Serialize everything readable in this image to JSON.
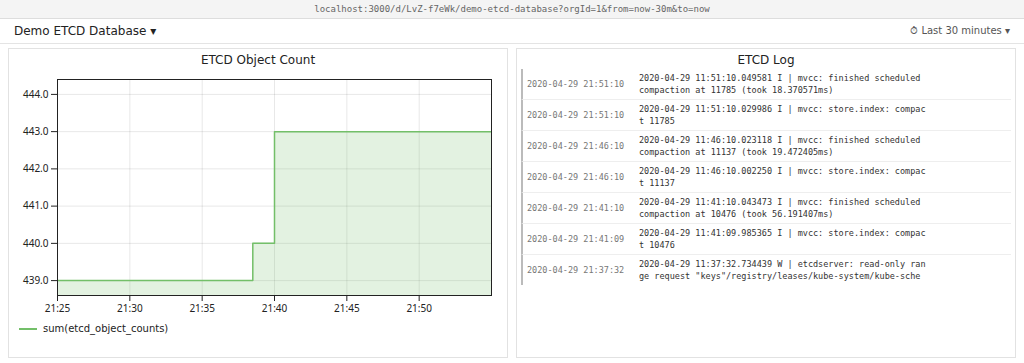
{
  "chart_data": [
    {
      "type": "area",
      "title": "ETCD Object Count",
      "x": [
        0,
        13.5,
        13.5,
        15.0,
        15.0,
        30
      ],
      "series": [
        {
          "name": "sum(etcd_object_counts)",
          "color": "#73bf69",
          "values": [
            439.0,
            439.0,
            440.0,
            440.0,
            443.0,
            443.0
          ]
        }
      ],
      "xlim": [
        0,
        30
      ],
      "xticks": [
        {
          "value": 0,
          "label": "21:25"
        },
        {
          "value": 5,
          "label": "21:30"
        },
        {
          "value": 10,
          "label": "21:35"
        },
        {
          "value": 15,
          "label": "21:40"
        },
        {
          "value": 20,
          "label": "21:45"
        },
        {
          "value": 25,
          "label": "21:50"
        }
      ],
      "ylim": [
        438.6,
        444.4
      ],
      "yticks": [
        {
          "value": 439.0,
          "label": "439.0"
        },
        {
          "value": 440.0,
          "label": "440.0"
        },
        {
          "value": 441.0,
          "label": "441.0"
        },
        {
          "value": 442.0,
          "label": "442.0"
        },
        {
          "value": 443.0,
          "label": "443.0"
        },
        {
          "value": 444.0,
          "label": "444.0"
        }
      ],
      "grid": true,
      "legend": "lower left",
      "annotations": [
        "localhost:3000/d/LvZ-f7eWk/demo-etcd-database?orgId=1&from=now-30m&to=now",
        "Demo ETCD Database ▾",
        "⏱ Last 30 minutes ▾"
      ]
    },
    {
      "type": "table",
      "title": "ETCD Log",
      "rows": [
        [
          "2020-04-29 21:51:10",
          "2020-04-29 11:51:10.049581 I | mvcc: finished scheduled",
          "compaction at 11785 (took 18.370571ms)"
        ],
        [
          "2020-04-29 21:51:10",
          "2020-04-29 11:51:10.029986 I | mvcc: store.index: compac",
          "t 11785"
        ],
        [
          "2020-04-29 21:46:10",
          "2020-04-29 11:46:10.023118 I | mvcc: finished scheduled",
          "compaction at 11137 (took 19.472405ms)"
        ],
        [
          "2020-04-29 21:46:10",
          "2020-04-29 11:46:10.002250 I | mvcc: store.index: compac",
          "t 11137"
        ],
        [
          "2020-04-29 21:41:10",
          "2020-04-29 11:41:10.043473 I | mvcc: finished scheduled",
          "compaction at 10476 (took 56.191407ms)"
        ],
        [
          "2020-04-29 21:41:09",
          "2020-04-29 11:41:09.985365 I | mvcc: store.index: compac",
          "t 10476"
        ],
        [
          "2020-04-29 21:37:32",
          "2020-04-29 11:37:32.734439 W | etcdserver: read-only ran",
          "ge request \"keys\"/registry/leases/kube-system/kube-sche"
        ]
      ]
    }
  ]
}
